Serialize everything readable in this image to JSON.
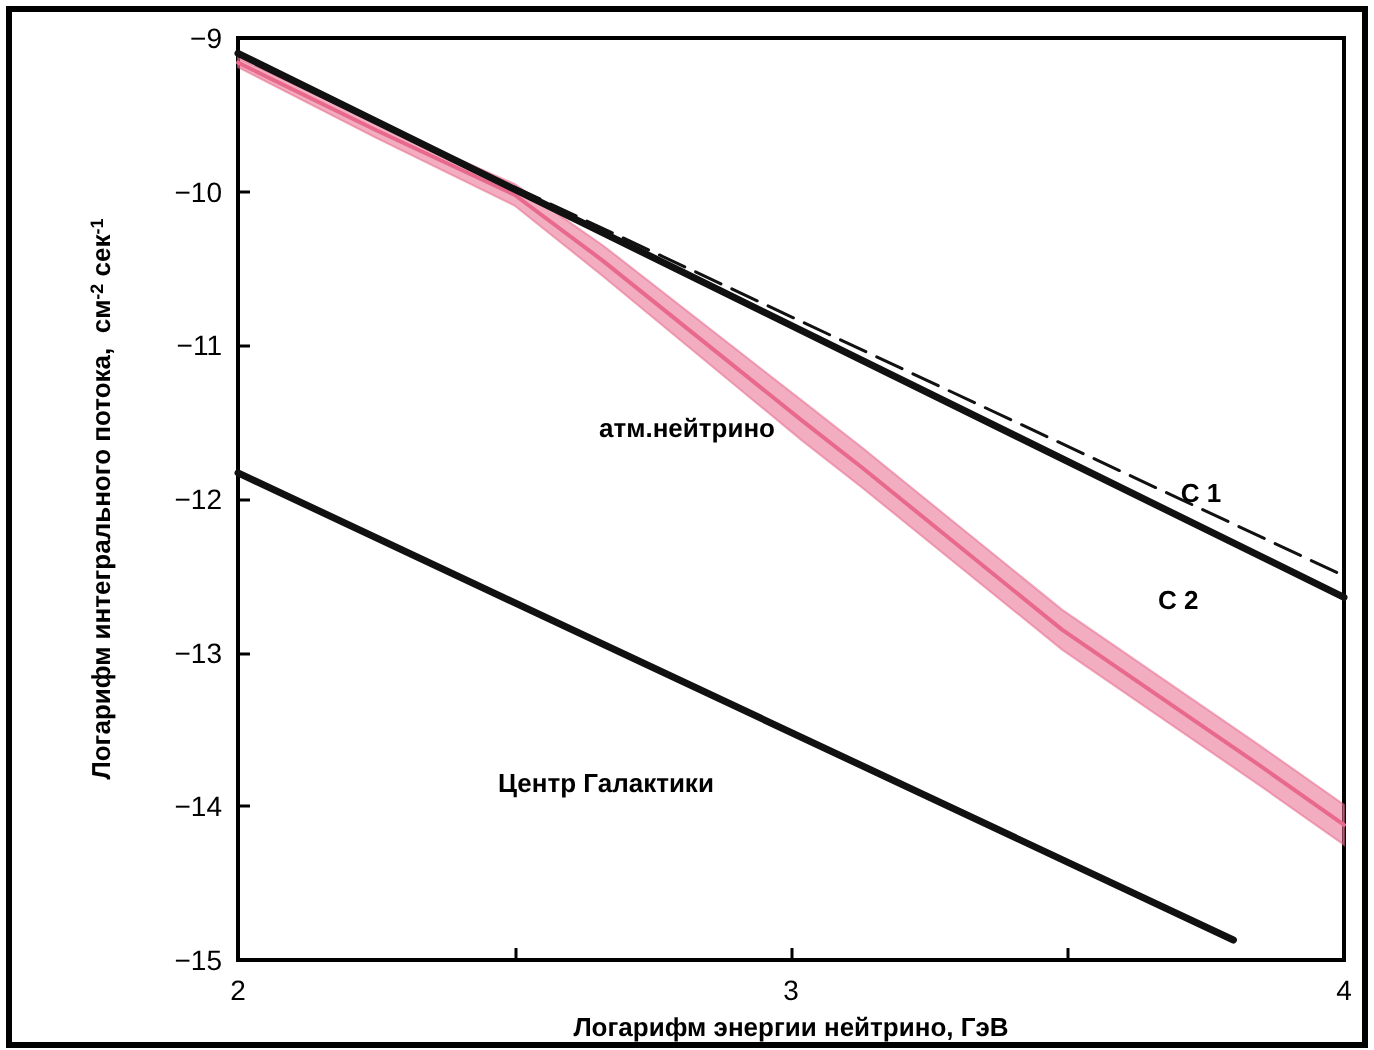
{
  "chart_data": {
    "type": "line",
    "xlabel": "Логарифм энергии нейтрино, ГэВ",
    "ylabel": "Логарифм интегрального потока,  см$^{-2}$ сек$^{-1}$",
    "xlim": [
      2,
      4
    ],
    "xticks": [
      2,
      {
        "value": 2.5,
        "label": null
      },
      3,
      {
        "value": 3.5,
        "label": null
      },
      4
    ],
    "ylim": [
      -15,
      -9
    ],
    "yticks": [
      -15,
      -14,
      -13,
      -12,
      -11,
      -10,
      -9
    ],
    "grid": false,
    "marker": "none",
    "series": [
      {
        "name": "атм.нейтрино",
        "type": "line",
        "color": "#e8698c",
        "x": [
          2,
          2.25,
          2.5,
          2.66,
          3.02,
          3.13,
          3.49,
          3.85,
          4
        ],
        "values": [
          -9.16,
          -9.6,
          -10.02,
          -10.45,
          -11.49,
          -11.8,
          -12.85,
          -13.74,
          -14.12
        ],
        "lower": [
          -9.19,
          -9.65,
          -10.09,
          -10.55,
          -11.62,
          -11.93,
          -12.98,
          -13.87,
          -14.25
        ],
        "upper": [
          -9.13,
          -9.55,
          -9.95,
          -10.35,
          -11.36,
          -11.67,
          -12.72,
          -13.61,
          -13.99
        ]
      },
      {
        "name": "C 1",
        "color": "#111111",
        "line_style": "dashed",
        "x": [
          2.5,
          4
        ],
        "values": [
          -9.97,
          -12.5
        ]
      },
      {
        "name": "C 2",
        "color": "#111111",
        "line_style": "solid",
        "x": [
          2,
          4
        ],
        "values": [
          -9.1,
          -12.64
        ]
      },
      {
        "name": "Центр Галактики",
        "color": "#111111",
        "line_style": "solid",
        "x": [
          2,
          3.8
        ],
        "values": [
          -11.83,
          -14.87
        ]
      }
    ]
  }
}
